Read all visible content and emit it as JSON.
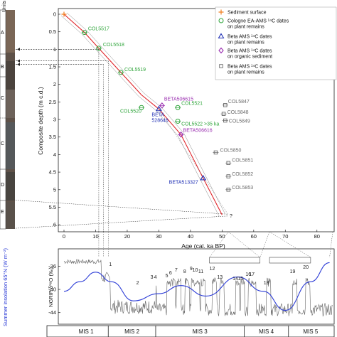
{
  "chart_data": [
    {
      "type": "scatter",
      "xlabel": "Age (cal. ka BP)",
      "ylabel": "Composite depth (m c.d.)",
      "xlim": [
        0,
        85
      ],
      "ylim": [
        6.2,
        0
      ],
      "x_ticks": [
        "0",
        "10",
        "20",
        "30",
        "40",
        "50",
        "60",
        "70",
        "80"
      ],
      "y_ticks": [
        "0",
        "0.5",
        "1",
        "1.5",
        "2",
        "2.5",
        "3",
        "3.5",
        "4",
        "4.5",
        "5",
        "5.5",
        "6"
      ],
      "legend_position": "top-right",
      "legend": [
        {
          "id": "surface",
          "text": "Sediment surface",
          "color": "#f07e1e",
          "marker": "plus"
        },
        {
          "id": "cologne",
          "text": "Cologne EA-AMS ¹⁴C dates on plant remains",
          "color": "#2ea43a",
          "marker": "circle"
        },
        {
          "id": "beta_plant",
          "text": "Beta AMS ¹⁴C dates on plant remains",
          "color": "#1f2fb4",
          "marker": "triangle"
        },
        {
          "id": "beta_org",
          "text": "Beta AMS ¹⁴C dates on organic sediment",
          "color": "#9a2fb0",
          "marker": "diamond"
        },
        {
          "id": "beta_rej",
          "text": "Beta AMS ¹⁴C dates on plant remains",
          "color": "#6a6a6a",
          "marker": "square"
        }
      ],
      "series": [
        {
          "name": "Sediment surface",
          "points": [
            {
              "x": 0,
              "y": 0
            }
          ]
        },
        {
          "name": "Cologne EA-AMS ¹⁴C dates on plant remains",
          "points": [
            {
              "label": "COL5517",
              "x": 6.5,
              "y": 0.52
            },
            {
              "label": "COL5518",
              "x": 11,
              "y": 0.97
            },
            {
              "label": "COL5519",
              "x": 18,
              "y": 1.66
            },
            {
              "label": "COL5520",
              "x": 24.5,
              "y": 2.66
            },
            {
              "label": "COL5521",
              "x": 36,
              "y": 2.66
            },
            {
              "label": "COL5522 >35 ka",
              "x": 36,
              "y": 3.05
            }
          ]
        },
        {
          "name": "Beta AMS ¹⁴C dates on plant remains",
          "points": [
            {
              "label": "BETA 528646",
              "x": 30,
              "y": 2.7
            },
            {
              "label": "BETA513327",
              "x": 44,
              "y": 4.67
            }
          ]
        },
        {
          "name": "Beta AMS ¹⁴C dates on organic sediment",
          "points": [
            {
              "label": "BETA506615",
              "x": 31,
              "y": 2.6
            },
            {
              "label": "BETA506616",
              "x": 37,
              "y": 3.43
            }
          ]
        },
        {
          "name": "Beta AMS ¹⁴C dates on plant remains (2)",
          "points": [
            {
              "label": "COL5847",
              "x": 51,
              "y": 2.59
            },
            {
              "label": "COL5848",
              "x": 50.5,
              "y": 2.84
            },
            {
              "label": "COL5849",
              "x": 51,
              "y": 3.03
            },
            {
              "label": "COL5850",
              "x": 48,
              "y": 3.94
            },
            {
              "label": "COL5851",
              "x": 52,
              "y": 4.24
            },
            {
              "label": "COL5852",
              "x": 52,
              "y": 4.62
            },
            {
              "label": "COL5853",
              "x": 52,
              "y": 5.0
            }
          ]
        }
      ],
      "age_depth_model": [
        [
          0,
          0
        ],
        [
          6.5,
          0.52
        ],
        [
          11,
          0.97
        ],
        [
          18,
          1.66
        ],
        [
          24.5,
          2.3
        ],
        [
          30,
          2.7
        ],
        [
          37,
          3.43
        ],
        [
          44,
          4.67
        ],
        [
          50,
          5.72
        ]
      ],
      "annotations": [
        "?"
      ]
    },
    {
      "type": "line",
      "ylabel_left": "NGRIP δ¹⁸O (‰)",
      "ylabel_right": "Summer insolation 65°N (W m⁻²)",
      "xlim": [
        0,
        85
      ],
      "ylim": [
        -46,
        -33
      ],
      "y_ticks": [
        "-36",
        "-40",
        "-44"
      ],
      "series": [
        {
          "name": "NGRIP δ¹⁸O",
          "color": "#555555"
        },
        {
          "name": "Summer insolation 65°N",
          "color": "#2b3bd6",
          "insolation_points": [
            [
              0,
              480
            ],
            [
              5,
              500
            ],
            [
              10,
              520
            ],
            [
              15,
              500
            ],
            [
              22,
              460
            ],
            [
              30,
              475
            ],
            [
              37,
              492
            ],
            [
              45,
              470
            ],
            [
              55,
              510
            ],
            [
              63,
              480
            ],
            [
              70,
              440
            ],
            [
              78,
              500
            ],
            [
              84,
              540
            ]
          ]
        }
      ],
      "interstadials": [
        "1",
        "2",
        "3",
        "4",
        "5",
        "6",
        "7",
        "8",
        "9",
        "10",
        "11",
        "12",
        "13",
        "14",
        "15",
        "16",
        "17",
        "18",
        "19",
        "20"
      ],
      "mis": [
        "MIS 1",
        "MIS 2",
        "MIS 3",
        "MIS 4",
        "MIS 5"
      ],
      "mis_bounds": [
        14,
        29,
        57,
        71
      ]
    }
  ],
  "core_panel": {
    "header": "Units",
    "units": [
      "A",
      "B",
      "C",
      "C",
      "D",
      "E"
    ]
  }
}
